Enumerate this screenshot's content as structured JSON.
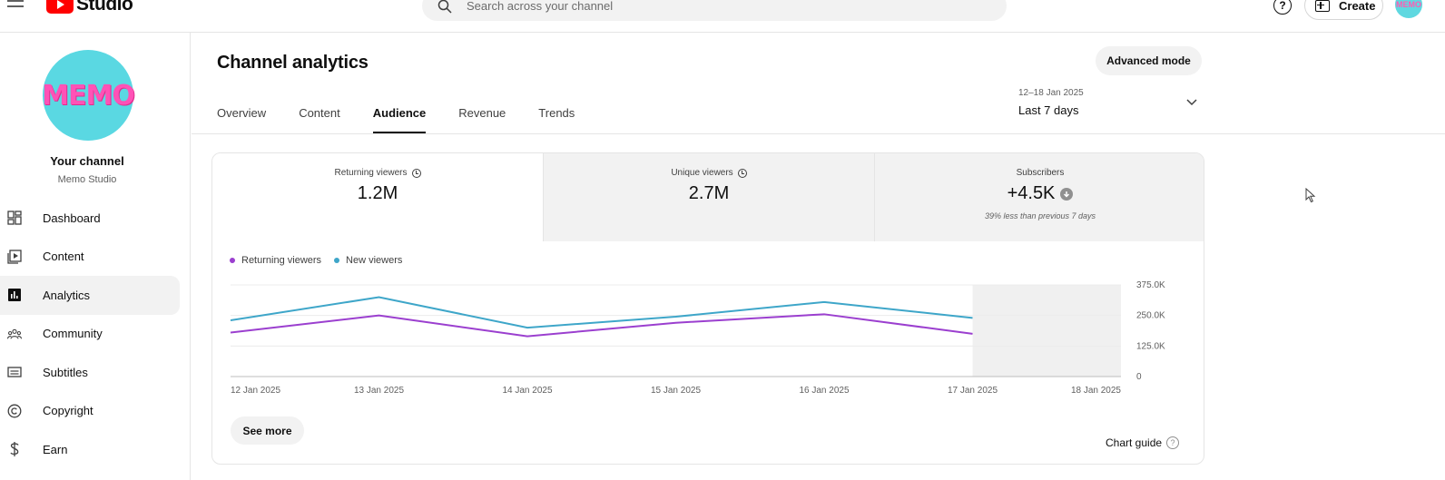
{
  "header": {
    "logo_text": "Studio",
    "search_placeholder": "Search across your channel",
    "help_label": "?",
    "create_label": "Create",
    "avatar_text": "MEMO"
  },
  "sidebar": {
    "channel_avatar_text": "MEMO",
    "channel_title": "Your channel",
    "channel_name": "Memo Studio",
    "items": [
      {
        "label": "Dashboard",
        "icon": "dashboard-icon"
      },
      {
        "label": "Content",
        "icon": "content-icon"
      },
      {
        "label": "Analytics",
        "icon": "analytics-icon",
        "active": true
      },
      {
        "label": "Community",
        "icon": "community-icon"
      },
      {
        "label": "Subtitles",
        "icon": "subtitles-icon"
      },
      {
        "label": "Copyright",
        "icon": "copyright-icon"
      },
      {
        "label": "Earn",
        "icon": "earn-icon"
      }
    ]
  },
  "main": {
    "title": "Channel analytics",
    "advanced_mode_label": "Advanced mode",
    "tabs": [
      {
        "label": "Overview"
      },
      {
        "label": "Content"
      },
      {
        "label": "Audience",
        "active": true
      },
      {
        "label": "Revenue"
      },
      {
        "label": "Trends"
      }
    ],
    "date_range": "12–18 Jan 2025",
    "date_label": "Last 7 days"
  },
  "metrics": [
    {
      "title": "Returning viewers",
      "value": "1.2M"
    },
    {
      "title": "Unique viewers",
      "value": "2.7M"
    },
    {
      "title": "Subscribers",
      "value": "+4.5K",
      "note": "39% less than previous 7 days"
    }
  ],
  "legend": [
    {
      "label": "Returning viewers",
      "color": "#9b3fcf"
    },
    {
      "label": "New viewers",
      "color": "#3ea6c9"
    }
  ],
  "chart_data": {
    "type": "line",
    "x": [
      "12 Jan 2025",
      "13 Jan 2025",
      "14 Jan 2025",
      "15 Jan 2025",
      "16 Jan 2025",
      "17 Jan 2025",
      "18 Jan 2025"
    ],
    "series": [
      {
        "name": "Returning viewers",
        "color": "#9b3fcf",
        "values": [
          180000,
          250000,
          165000,
          220000,
          255000,
          175000,
          null
        ]
      },
      {
        "name": "New viewers",
        "color": "#3ea6c9",
        "values": [
          230000,
          325000,
          200000,
          245000,
          305000,
          240000,
          null
        ]
      }
    ],
    "y_ticks": [
      "375.0K",
      "250.0K",
      "125.0K",
      "0"
    ],
    "ylim": [
      0,
      375000
    ],
    "shaded_from": "17 Jan 2025",
    "grid": true,
    "legend_position": "top-left"
  },
  "footer": {
    "see_more_label": "See more",
    "chart_guide_label": "Chart guide",
    "chart_guide_icon": "?"
  }
}
